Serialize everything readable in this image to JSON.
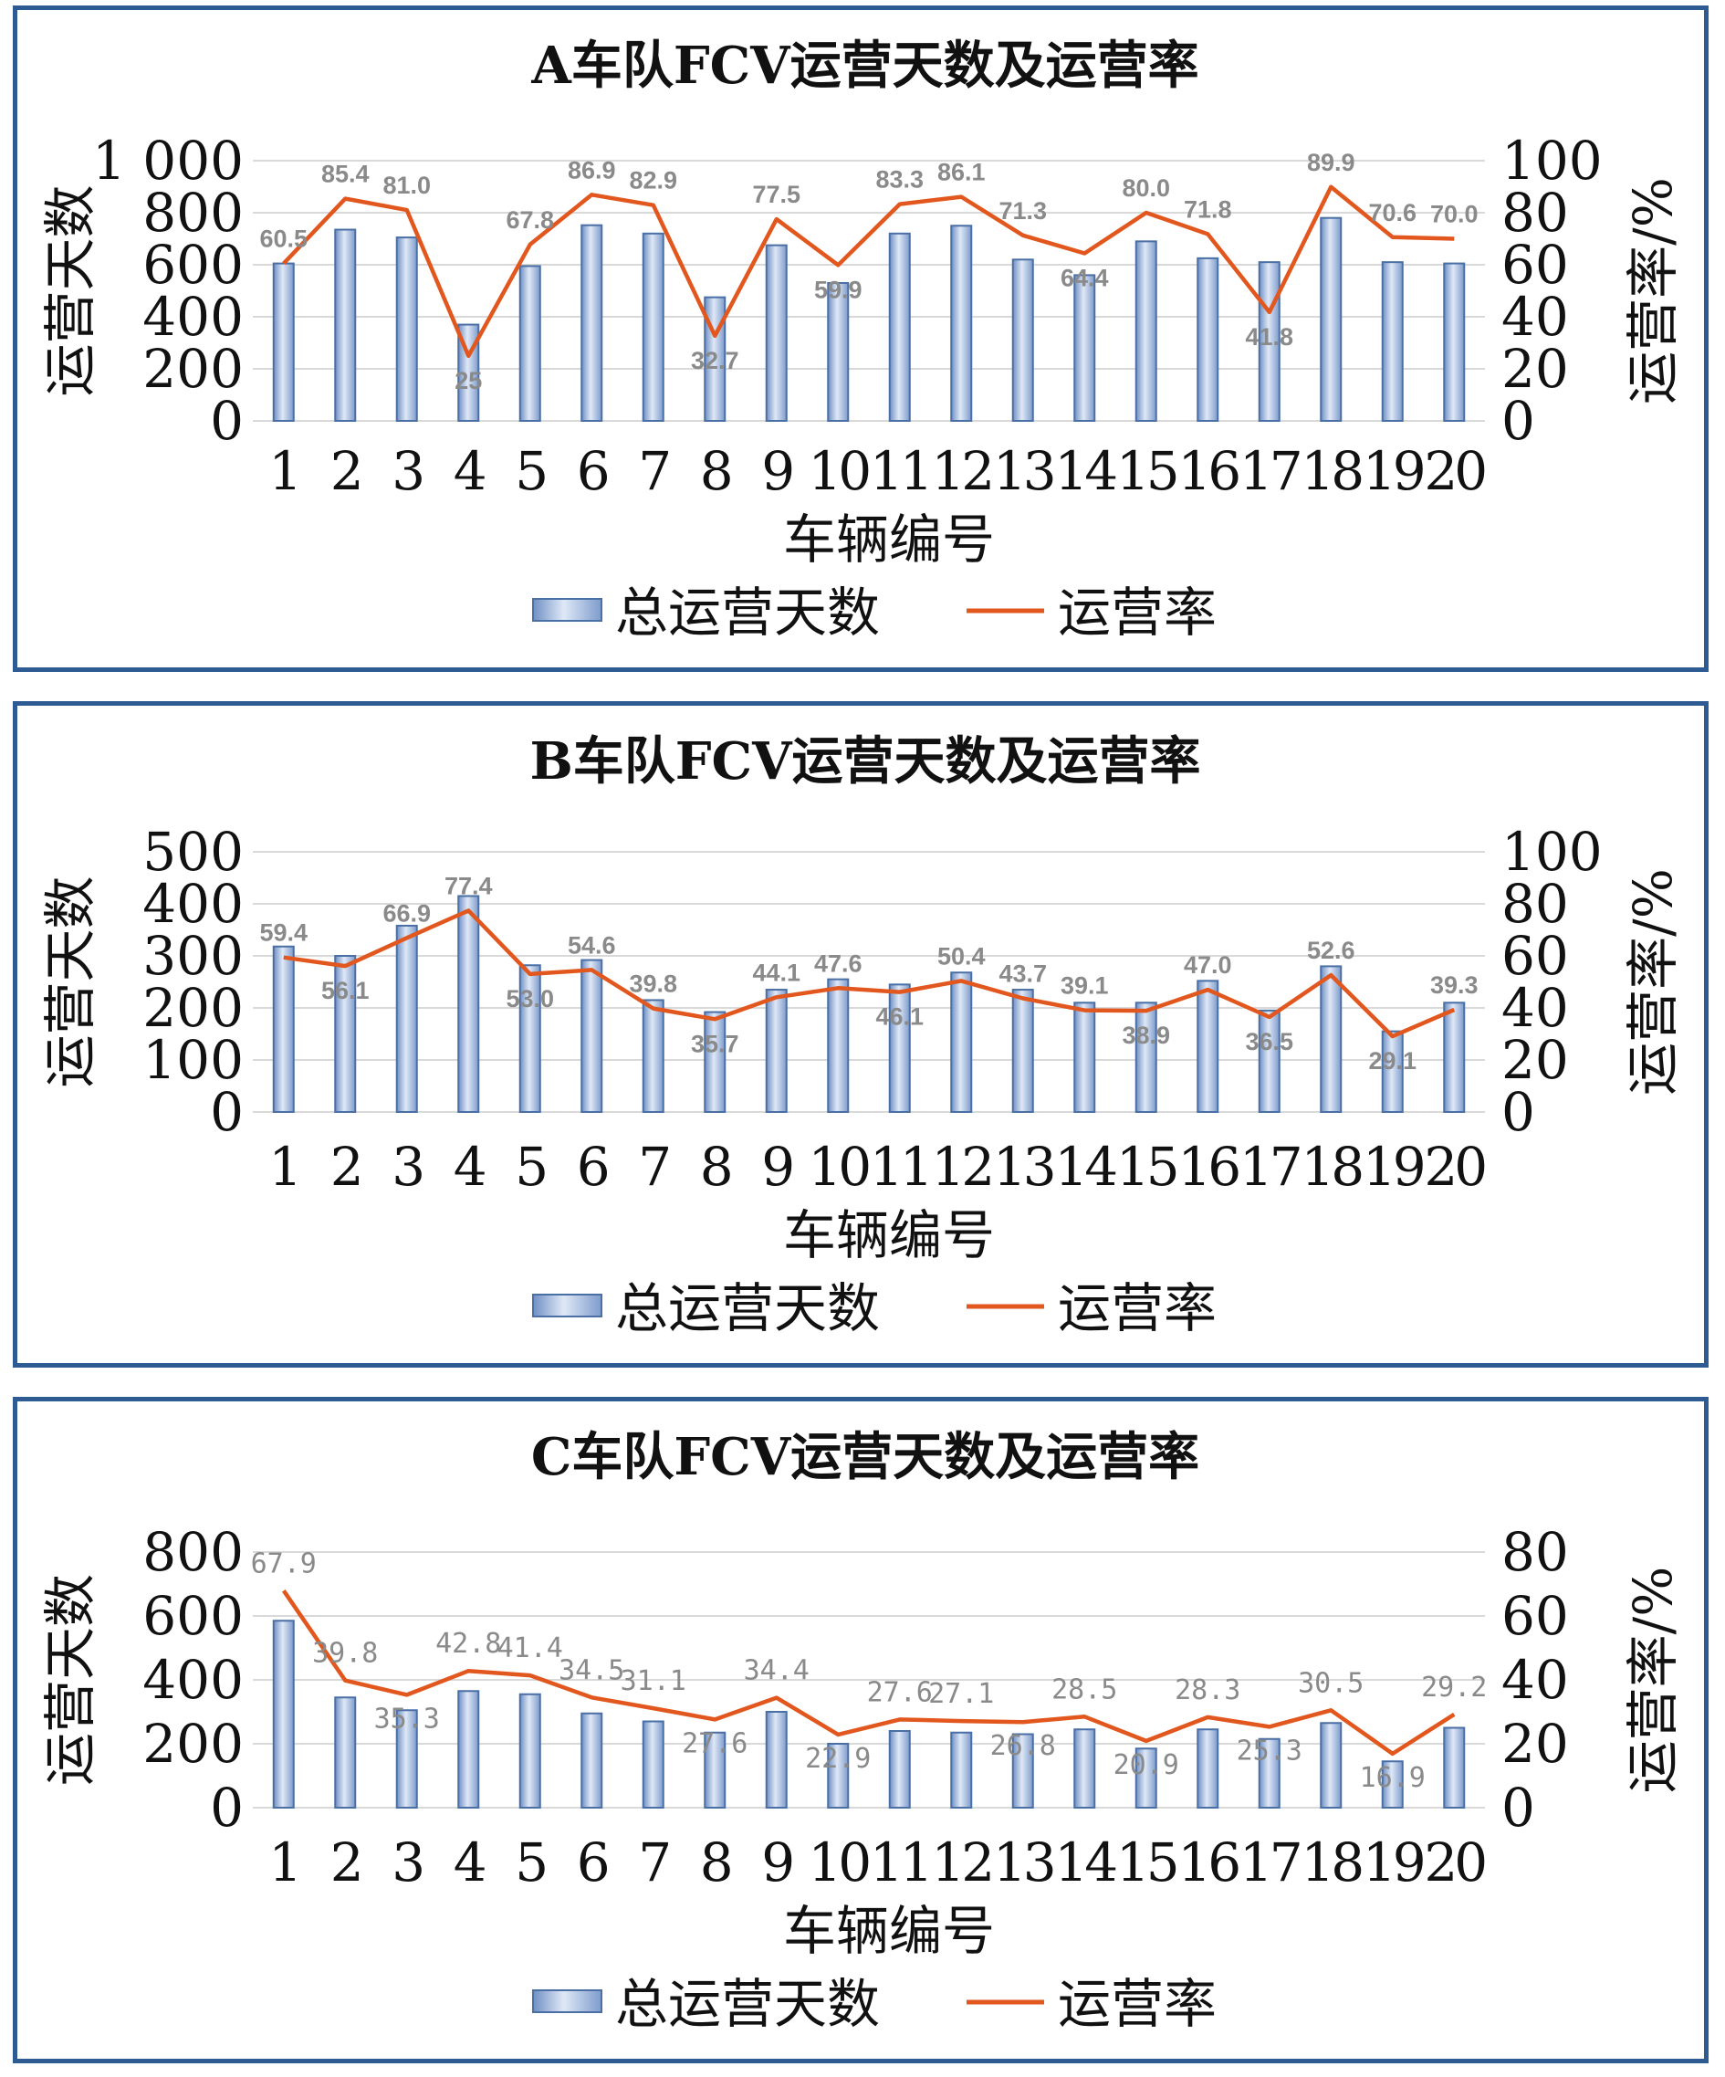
{
  "colors": {
    "bar": "#9fb6dd",
    "bar_edge": "#4a6fa5",
    "line": "#e2571e",
    "border": "#2f5b93",
    "grid": "#d9d9d9",
    "label": "#8a8a8a"
  },
  "chart_data": [
    {
      "type": "bar+line",
      "title": "A车队FCV运营天数及运营率",
      "xlabel": "车辆编号",
      "ylabel_left": "运营天数",
      "ylabel_right": "运营率/%",
      "ylim_left": [
        0,
        1000
      ],
      "ylim_right": [
        0,
        100
      ],
      "yticks_left": [
        "0",
        "200",
        "400",
        "600",
        "800",
        "1 000"
      ],
      "yticks_right": [
        "0",
        "20",
        "40",
        "60",
        "80",
        "100"
      ],
      "categories": [
        "1",
        "2",
        "3",
        "4",
        "5",
        "6",
        "7",
        "8",
        "9",
        "10",
        "11",
        "12",
        "13",
        "14",
        "15",
        "16",
        "17",
        "18",
        "19",
        "20"
      ],
      "legend": [
        "总运营天数",
        "运营率"
      ],
      "series": [
        {
          "name": "总运营天数",
          "type": "bar",
          "values": [
            605,
            735,
            705,
            370,
            595,
            752,
            720,
            475,
            675,
            530,
            720,
            750,
            620,
            560,
            690,
            625,
            610,
            780,
            610,
            605
          ]
        },
        {
          "name": "运营率",
          "type": "line",
          "values": [
            60.5,
            85.4,
            81.0,
            25,
            67.8,
            86.9,
            82.9,
            32.7,
            77.5,
            59.9,
            83.3,
            86.1,
            71.3,
            64.4,
            80.0,
            71.8,
            41.8,
            89.9,
            70.6,
            70.0
          ],
          "labels": [
            "60.5",
            "85.4",
            "81.0",
            "25",
            "67.8",
            "86.9",
            "82.9",
            "32.7",
            "77.5",
            "59.9",
            "83.3",
            "86.1",
            "71.3",
            "64.4",
            "80.0",
            "71.8",
            "41.8",
            "89.9",
            "70.6",
            "70.0"
          ]
        }
      ]
    },
    {
      "type": "bar+line",
      "title": "B车队FCV运营天数及运营率",
      "xlabel": "车辆编号",
      "ylabel_left": "运营天数",
      "ylabel_right": "运营率/%",
      "ylim_left": [
        0,
        500
      ],
      "ylim_right": [
        0,
        100
      ],
      "yticks_left": [
        "0",
        "100",
        "200",
        "300",
        "400",
        "500"
      ],
      "yticks_right": [
        "0",
        "20",
        "40",
        "60",
        "80",
        "100"
      ],
      "categories": [
        "1",
        "2",
        "3",
        "4",
        "5",
        "6",
        "7",
        "8",
        "9",
        "10",
        "11",
        "12",
        "13",
        "14",
        "15",
        "16",
        "17",
        "18",
        "19",
        "20"
      ],
      "legend": [
        "总运营天数",
        "运营率"
      ],
      "series": [
        {
          "name": "总运营天数",
          "type": "bar",
          "values": [
            318,
            300,
            358,
            415,
            282,
            292,
            215,
            192,
            235,
            255,
            245,
            268,
            235,
            210,
            210,
            252,
            195,
            280,
            155,
            210
          ]
        },
        {
          "name": "运营率",
          "type": "line",
          "values": [
            59.4,
            56.1,
            66.9,
            77.4,
            53.0,
            54.6,
            39.8,
            35.7,
            44.1,
            47.6,
            46.1,
            50.4,
            43.7,
            39.1,
            38.9,
            47.0,
            36.5,
            52.6,
            29.1,
            39.3
          ],
          "labels": [
            "59.4",
            "56.1",
            "66.9",
            "77.4",
            "53.0",
            "54.6",
            "39.8",
            "35.7",
            "44.1",
            "47.6",
            "46.1",
            "50.4",
            "43.7",
            "39.1",
            "38.9",
            "47.0",
            "36.5",
            "52.6",
            "29.1",
            "39.3"
          ]
        }
      ]
    },
    {
      "type": "bar+line",
      "title": "C车队FCV运营天数及运营率",
      "xlabel": "车辆编号",
      "ylabel_left": "运营天数",
      "ylabel_right": "运营率/%",
      "ylim_left": [
        0,
        800
      ],
      "ylim_right": [
        0,
        80
      ],
      "yticks_left": [
        "0",
        "200",
        "400",
        "600",
        "800"
      ],
      "yticks_right": [
        "0",
        "20",
        "40",
        "60",
        "80"
      ],
      "categories": [
        "1",
        "2",
        "3",
        "4",
        "5",
        "6",
        "7",
        "8",
        "9",
        "10",
        "11",
        "12",
        "13",
        "14",
        "15",
        "16",
        "17",
        "18",
        "19",
        "20"
      ],
      "legend": [
        "总运营天数",
        "运营率"
      ],
      "series": [
        {
          "name": "总运营天数",
          "type": "bar",
          "values": [
            585,
            345,
            305,
            365,
            355,
            295,
            270,
            235,
            300,
            200,
            240,
            235,
            230,
            245,
            185,
            245,
            215,
            265,
            145,
            250
          ]
        },
        {
          "name": "运营率",
          "type": "line",
          "values": [
            67.9,
            39.8,
            35.3,
            42.8,
            41.4,
            34.5,
            31.1,
            27.6,
            34.4,
            22.9,
            27.6,
            27.1,
            26.8,
            28.5,
            20.9,
            28.3,
            25.3,
            30.5,
            16.9,
            29.2
          ],
          "labels": [
            "67.9",
            "39.8",
            "35.3",
            "42.8",
            "41.4",
            "34.5",
            "31.1",
            "27.6",
            "34.4",
            "22.9",
            "27.6",
            "27.1",
            "26.8",
            "28.5",
            "20.9",
            "28.3",
            "25.3",
            "30.5",
            "16.9",
            "29.2"
          ]
        }
      ]
    }
  ]
}
